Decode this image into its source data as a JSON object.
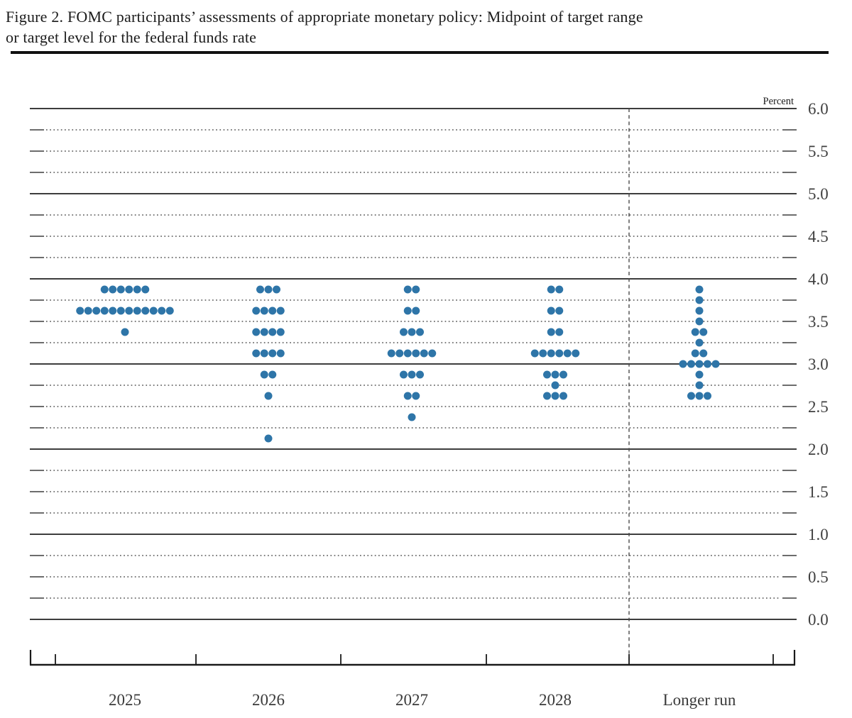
{
  "figure": {
    "title_lines": [
      "Figure 2.  FOMC participants’ assessments of appropriate monetary policy: Midpoint of target range",
      "or target level for the federal funds rate"
    ]
  },
  "chart_data": {
    "type": "scatter",
    "subtype": "fomc-dot-plot",
    "title": "FOMC participants’ assessments of appropriate monetary policy: Midpoint of target range or target level for the federal funds rate",
    "unit_label": "Percent",
    "xlabel": "",
    "ylabel": "Percent",
    "ylim": [
      0.0,
      6.0
    ],
    "ytick_step": 0.5,
    "grid_minor_step": 0.25,
    "grid": true,
    "legend_position": "none",
    "dot_color": "#2e75a8",
    "y_tick_labels": [
      "6.0",
      "5.5",
      "5.0",
      "4.5",
      "4.0",
      "3.5",
      "3.0",
      "2.5",
      "2.0",
      "1.5",
      "1.0",
      "0.5",
      "0.0"
    ],
    "categories": [
      "2025",
      "2026",
      "2027",
      "2028",
      "Longer run"
    ],
    "series": [
      {
        "name": "2025",
        "dots": [
          {
            "rate": 3.875,
            "count": 6
          },
          {
            "rate": 3.625,
            "count": 12
          },
          {
            "rate": 3.375,
            "count": 1
          }
        ]
      },
      {
        "name": "2026",
        "dots": [
          {
            "rate": 3.875,
            "count": 3
          },
          {
            "rate": 3.625,
            "count": 4
          },
          {
            "rate": 3.375,
            "count": 4
          },
          {
            "rate": 3.125,
            "count": 4
          },
          {
            "rate": 2.875,
            "count": 2
          },
          {
            "rate": 2.625,
            "count": 1
          },
          {
            "rate": 2.125,
            "count": 1
          }
        ]
      },
      {
        "name": "2027",
        "dots": [
          {
            "rate": 3.875,
            "count": 2
          },
          {
            "rate": 3.625,
            "count": 2
          },
          {
            "rate": 3.375,
            "count": 3
          },
          {
            "rate": 3.125,
            "count": 6
          },
          {
            "rate": 2.875,
            "count": 3
          },
          {
            "rate": 2.625,
            "count": 2
          },
          {
            "rate": 2.375,
            "count": 1
          }
        ]
      },
      {
        "name": "2028",
        "dots": [
          {
            "rate": 3.875,
            "count": 2
          },
          {
            "rate": 3.625,
            "count": 2
          },
          {
            "rate": 3.375,
            "count": 2
          },
          {
            "rate": 3.125,
            "count": 6
          },
          {
            "rate": 2.875,
            "count": 3
          },
          {
            "rate": 2.75,
            "count": 1
          },
          {
            "rate": 2.625,
            "count": 3
          }
        ]
      },
      {
        "name": "Longer run",
        "dots": [
          {
            "rate": 3.875,
            "count": 1
          },
          {
            "rate": 3.75,
            "count": 1
          },
          {
            "rate": 3.625,
            "count": 1
          },
          {
            "rate": 3.5,
            "count": 1
          },
          {
            "rate": 3.375,
            "count": 2
          },
          {
            "rate": 3.25,
            "count": 1
          },
          {
            "rate": 3.125,
            "count": 2
          },
          {
            "rate": 3.0,
            "count": 5
          },
          {
            "rate": 2.875,
            "count": 1
          },
          {
            "rate": 2.75,
            "count": 1
          },
          {
            "rate": 2.625,
            "count": 3
          }
        ]
      }
    ]
  }
}
